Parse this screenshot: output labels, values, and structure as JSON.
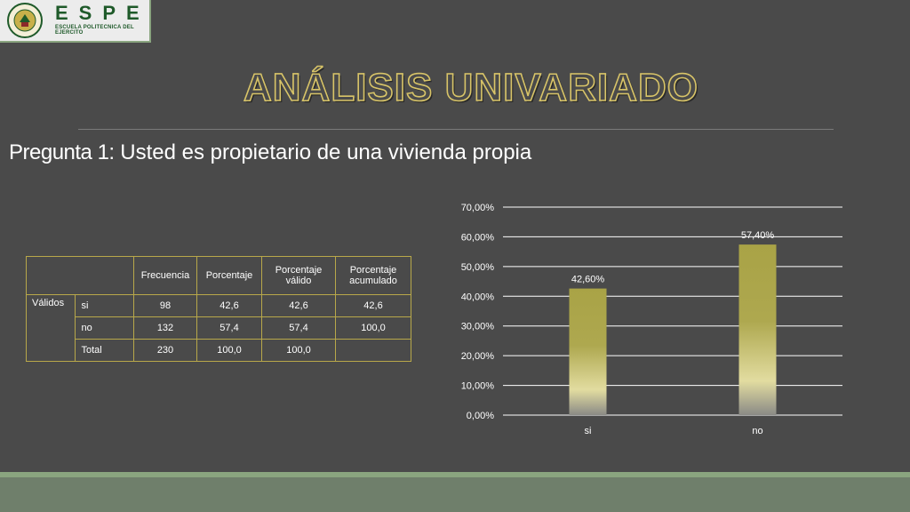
{
  "logo": {
    "letters": "ESPE",
    "subtitle": "ESCUELA POLITECNICA DEL EJERCITO"
  },
  "header": {
    "title": "ANÁLISIS UNIVARIADO",
    "question_lead": "Pregunta 1:",
    "question_text": " Usted es propietario de una vivienda propia"
  },
  "table": {
    "headers": [
      "",
      "",
      "Frecuencia",
      "Porcentaje",
      "Porcentaje válido",
      "Porcentaje acumulado"
    ],
    "group_label": "Válidos",
    "rows": [
      {
        "label": "si",
        "frecuencia": "98",
        "porcentaje": "42,6",
        "valido": "42,6",
        "acumulado": "42,6"
      },
      {
        "label": "no",
        "frecuencia": "132",
        "porcentaje": "57,4",
        "valido": "57,4",
        "acumulado": "100,0"
      },
      {
        "label": "Total",
        "frecuencia": "230",
        "porcentaje": "100,0",
        "valido": "100,0",
        "acumulado": ""
      }
    ]
  },
  "colors": {
    "background": "#4a4a4a",
    "accent": "#d8c468",
    "bar": "#a9a346"
  },
  "chart_data": {
    "type": "bar",
    "title": "",
    "xlabel": "",
    "ylabel": "",
    "categories": [
      "si",
      "no"
    ],
    "values": [
      42.6,
      57.4
    ],
    "data_labels": [
      "42,60%",
      "57,40%"
    ],
    "ylim": [
      0,
      70
    ],
    "yticks": [
      0,
      10,
      20,
      30,
      40,
      50,
      60,
      70
    ],
    "ytick_labels": [
      "0,00%",
      "10,00%",
      "20,00%",
      "30,00%",
      "40,00%",
      "50,00%",
      "60,00%",
      "70,00%"
    ],
    "grid": true,
    "legend": "none"
  }
}
